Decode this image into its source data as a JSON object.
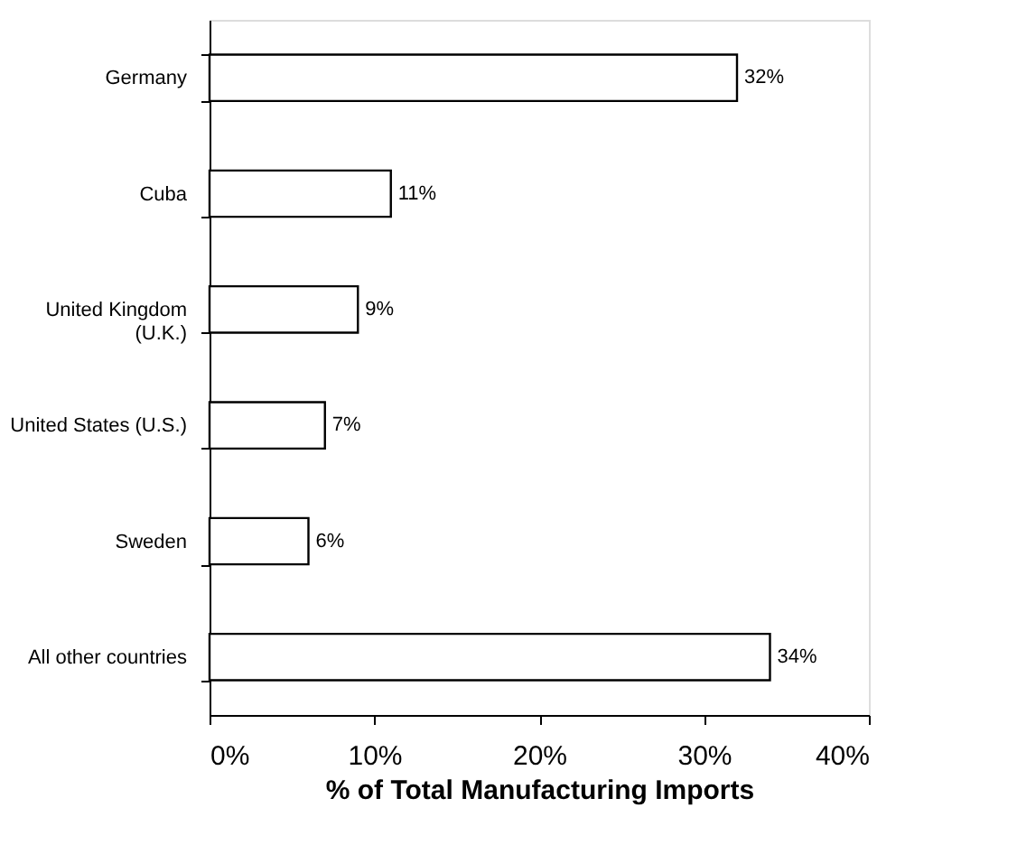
{
  "chart_data": {
    "type": "bar",
    "orientation": "horizontal",
    "categories": [
      "Germany",
      "Cuba",
      "United Kingdom\n(U.K.)",
      "United States (U.S.)",
      "Sweden",
      "All other countries"
    ],
    "values": [
      32,
      11,
      9,
      7,
      6,
      34
    ],
    "value_labels": [
      "32%",
      "11%",
      "9%",
      "7%",
      "6%",
      "34%"
    ],
    "color": "#ffffff",
    "xlabel": "% of Total Manufacturing Imports",
    "xlim": [
      0,
      40
    ],
    "xticks": [
      {
        "value": 0,
        "label": "0%"
      },
      {
        "value": 10,
        "label": "10%"
      },
      {
        "value": 20,
        "label": "20%"
      },
      {
        "value": 30,
        "label": "30%"
      },
      {
        "value": 40,
        "label": "40%"
      }
    ],
    "grid": false
  }
}
